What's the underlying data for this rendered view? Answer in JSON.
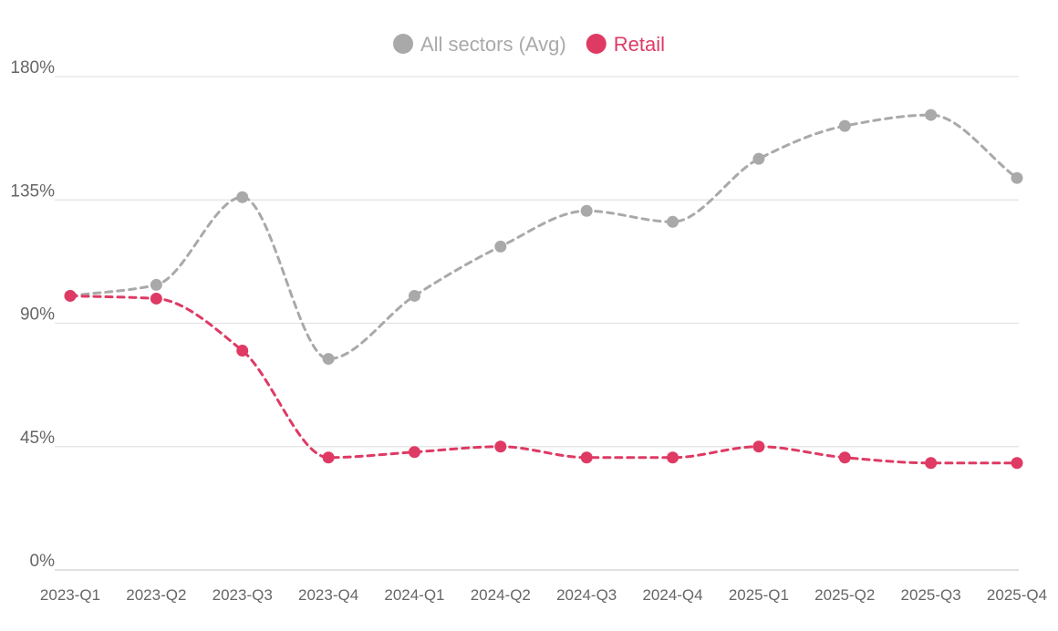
{
  "chart_data": {
    "type": "line",
    "categories": [
      "2023-Q1",
      "2023-Q2",
      "2023-Q3",
      "2023-Q4",
      "2024-Q1",
      "2024-Q2",
      "2024-Q3",
      "2024-Q4",
      "2025-Q1",
      "2025-Q2",
      "2025-Q3",
      "2025-Q4"
    ],
    "series": [
      {
        "name": "All sectors (Avg)",
        "color": "#a9a9a9",
        "values": [
          100,
          104,
          136,
          77,
          100,
          118,
          131,
          127,
          150,
          162,
          166,
          143
        ]
      },
      {
        "name": "Retail",
        "color": "#de3a64",
        "values": [
          100,
          99,
          80,
          41,
          43,
          45,
          41,
          41,
          45,
          41,
          39,
          39
        ]
      }
    ],
    "ylim": [
      0,
      180
    ],
    "yticks": [
      0,
      45,
      90,
      135,
      180
    ],
    "ytick_labels": [
      "0%",
      "45%",
      "90%",
      "135%",
      "180%"
    ],
    "grid": true,
    "legend_position": "top-center",
    "line_style": "dashed",
    "title": "",
    "xlabel": "",
    "ylabel": ""
  }
}
